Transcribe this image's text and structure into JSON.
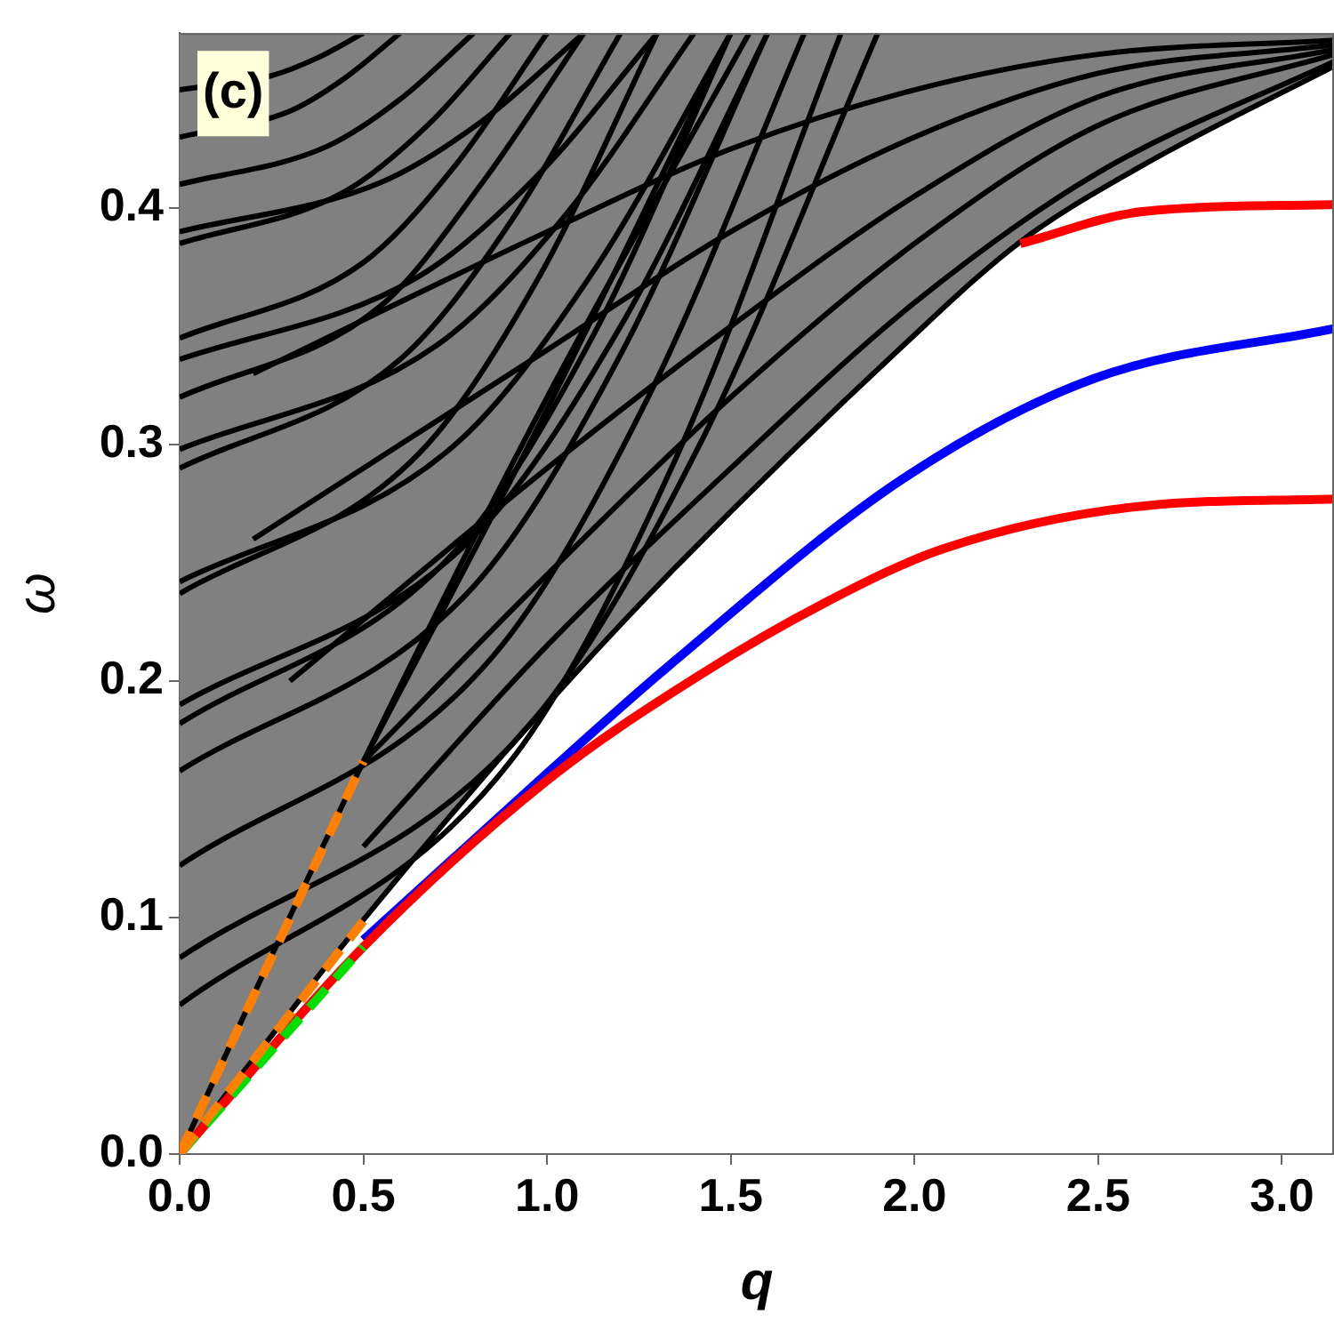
{
  "chart_data": {
    "type": "line",
    "xlabel": "q",
    "ylabel": "ω",
    "annotations": [
      "(c)"
    ],
    "xlim": [
      0,
      3.1416
    ],
    "ylim": [
      0,
      0.474
    ],
    "xticks": [
      {
        "value": 0,
        "label": "0.0"
      },
      {
        "value": 0.5,
        "label": "0.5"
      },
      {
        "value": 1,
        "label": "1.0"
      },
      {
        "value": 1.5,
        "label": "1.5"
      },
      {
        "value": 2,
        "label": "2.0"
      },
      {
        "value": 2.5,
        "label": "2.5"
      },
      {
        "value": 3,
        "label": "3.0"
      }
    ],
    "yticks": [
      {
        "value": 0,
        "label": "0.0"
      },
      {
        "value": 0.1,
        "label": "0.1"
      },
      {
        "value": 0.2,
        "label": "0.2"
      },
      {
        "value": 0.3,
        "label": "0.3"
      },
      {
        "value": 0.4,
        "label": "0.4"
      }
    ],
    "legend": false,
    "grid": false,
    "marker": "none",
    "line_style": "solid",
    "series": [
      {
        "color": "#ff8000",
        "line_style": "dashed",
        "x": [
          0,
          0.5
        ],
        "values": [
          0,
          0.166
        ]
      },
      {
        "color": "#ff8000",
        "line_style": "dashed",
        "x": [
          0,
          0.5
        ],
        "values": [
          0,
          0.0985
        ]
      },
      {
        "color": "#00e000",
        "line_style": "dashed",
        "x": [
          0,
          0.5
        ],
        "values": [
          0,
          0.0876
        ]
      },
      {
        "color": "#ff0000",
        "x": [
          0,
          0.5,
          1.0,
          1.41,
          1.755,
          2.08,
          2.62,
          3.1416
        ],
        "values": [
          0,
          0.0876,
          0.158,
          0.202,
          0.233,
          0.256,
          0.274,
          0.277
        ]
      },
      {
        "color": "#0000ff",
        "x": [
          0.5,
          1.0,
          1.328,
          1.973,
          2.49,
          3.1416
        ],
        "values": [
          0.0905,
          0.161,
          0.206,
          0.286,
          0.328,
          0.349
        ]
      },
      {
        "color": "#ff0000",
        "x": [
          2.288,
          2.62,
          3.1416
        ],
        "values": [
          0.385,
          0.3985,
          0.4015
        ]
      },
      {
        "color": "#000000",
        "x": [
          0,
          0.5,
          1.0,
          1.33,
          1.97,
          2.29,
          2.62,
          3.1416
        ],
        "values": [
          0,
          0.099,
          0.19,
          0.245,
          0.342,
          0.386,
          0.418,
          0.46
        ],
        "lower": [
          0,
          0.099,
          0.19,
          0.245,
          0.342,
          0.386,
          0.418,
          0.46
        ],
        "upper": [
          0.474,
          0.474,
          0.474,
          0.474,
          0.474,
          0.474,
          0.474,
          0.474
        ]
      },
      {
        "color": "#000000",
        "x": [
          0,
          0.9,
          1.35,
          1.8
        ],
        "values": [
          0.063,
          0.166,
          0.294,
          0.474
        ]
      },
      {
        "color": "#000000",
        "x": [
          0,
          0.95,
          1.425,
          1.9
        ],
        "values": [
          0.083,
          0.181,
          0.303,
          0.474
        ]
      },
      {
        "color": "#000000",
        "x": [
          0,
          0.85,
          1.275,
          1.7
        ],
        "values": [
          0.122,
          0.21,
          0.32,
          0.474
        ]
      },
      {
        "color": "#000000",
        "x": [
          0,
          0.8,
          1.2,
          1.6
        ],
        "values": [
          0.162,
          0.24,
          0.338,
          0.474
        ]
      },
      {
        "color": "#000000",
        "x": [
          0,
          0.75,
          1.125,
          1.5
        ],
        "values": [
          0.182,
          0.255,
          0.346,
          0.474
        ]
      },
      {
        "color": "#000000",
        "x": [
          0,
          0.8,
          1.2,
          1.6
        ],
        "values": [
          0.19,
          0.261,
          0.35,
          0.474
        ]
      },
      {
        "color": "#000000",
        "x": [
          0,
          0.65,
          0.975,
          1.3
        ],
        "values": [
          0.237,
          0.296,
          0.37,
          0.474
        ]
      },
      {
        "color": "#000000",
        "x": [
          0,
          0.75,
          1.125,
          1.5
        ],
        "values": [
          0.242,
          0.3,
          0.373,
          0.474
        ]
      },
      {
        "color": "#000000",
        "x": [
          0,
          0.6,
          0.9,
          1.2
        ],
        "values": [
          0.29,
          0.336,
          0.394,
          0.474
        ]
      },
      {
        "color": "#000000",
        "x": [
          0,
          0.7,
          1.05,
          1.4
        ],
        "values": [
          0.298,
          0.342,
          0.397,
          0.474
        ]
      },
      {
        "color": "#000000",
        "x": [
          0,
          0.55,
          0.825,
          1.1
        ],
        "values": [
          0.32,
          0.359,
          0.411,
          0.474
        ]
      },
      {
        "color": "#000000",
        "x": [
          0,
          0.65,
          0.975,
          1.3
        ],
        "values": [
          0.336,
          0.371,
          0.414,
          0.474
        ]
      },
      {
        "color": "#000000",
        "x": [
          0,
          0.5,
          0.75,
          1.0
        ],
        "values": [
          0.345,
          0.377,
          0.418,
          0.474
        ]
      },
      {
        "color": "#000000",
        "x": [
          0,
          0.45,
          0.675,
          0.9
        ],
        "values": [
          0.385,
          0.407,
          0.435,
          0.474
        ]
      },
      {
        "color": "#000000",
        "x": [
          0,
          0.55,
          0.825,
          1.1
        ],
        "values": [
          0.39,
          0.411,
          0.437,
          0.474
        ]
      },
      {
        "color": "#000000",
        "x": [
          0,
          0.4,
          0.6,
          0.8
        ],
        "values": [
          0.41,
          0.426,
          0.446,
          0.474
        ]
      },
      {
        "color": "#000000",
        "x": [
          0,
          0.3,
          0.45,
          0.6
        ],
        "values": [
          0.43,
          0.441,
          0.455,
          0.474
        ]
      },
      {
        "color": "#000000",
        "x": [
          0,
          0.25,
          0.375,
          0.5
        ],
        "values": [
          0.45,
          0.456,
          0.4635,
          0.474
        ]
      },
      {
        "color": "#000000",
        "x": [
          0.5,
          1.0,
          1.5,
          2.0,
          2.5,
          3.1416
        ],
        "values": [
          0.13,
          0.215,
          0.29,
          0.36,
          0.415,
          0.462
        ]
      },
      {
        "color": "#000000",
        "x": [
          0.5,
          1.0,
          1.5,
          2.0,
          2.5,
          3.1416
        ],
        "values": [
          0.166,
          0.245,
          0.32,
          0.385,
          0.435,
          0.465
        ]
      },
      {
        "color": "#000000",
        "x": [
          0.3,
          1.0,
          1.5,
          2.0,
          2.5,
          3.1416
        ],
        "values": [
          0.2,
          0.29,
          0.35,
          0.405,
          0.447,
          0.467
        ]
      },
      {
        "color": "#000000",
        "x": [
          0.2,
          1.0,
          1.5,
          2.0,
          2.5,
          3.1416
        ],
        "values": [
          0.26,
          0.34,
          0.39,
          0.43,
          0.457,
          0.469
        ]
      },
      {
        "color": "#000000",
        "x": [
          0.2,
          1.0,
          1.5,
          2.0,
          2.5,
          3.1416
        ],
        "values": [
          0.33,
          0.39,
          0.425,
          0.45,
          0.465,
          0.471
        ]
      },
      {
        "color": "#000000",
        "x": [
          0,
          0.5,
          1.0,
          1.55
        ],
        "values": [
          0,
          0.166,
          0.32,
          0.474
        ]
      },
      {
        "color": "#000000",
        "x": [
          0.5,
          1.0,
          1.5
        ],
        "values": [
          0.166,
          0.315,
          0.474
        ]
      }
    ]
  }
}
